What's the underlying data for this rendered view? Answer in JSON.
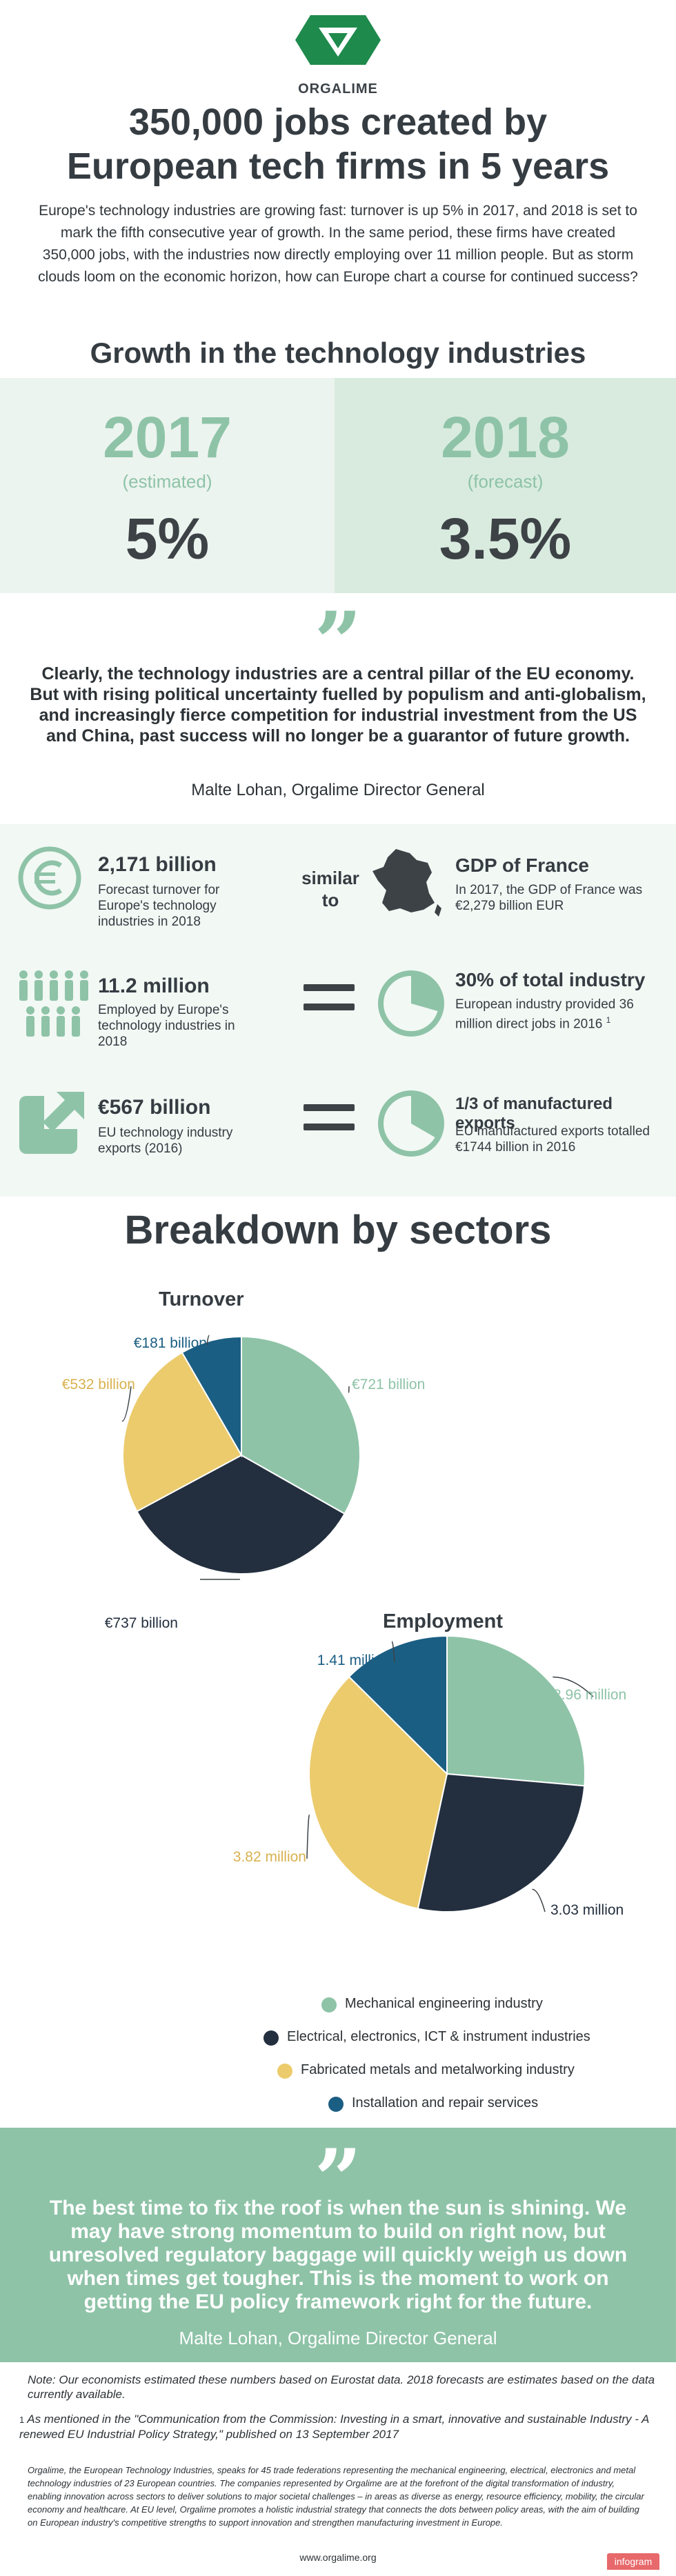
{
  "header": {
    "logo_text": "ORGALIME",
    "title": "350,000 jobs created by European tech firms in 5 years",
    "title_line1": "350,000 jobs created by",
    "title_line2": "European tech firms in 5 years",
    "intro": "Europe's technology industries are growing fast: turnover is up 5% in 2017, and 2018 is set to mark the fifth consecutive year of growth. In the same period, these firms have created 350,000 jobs, with the industries now directly employing over 11 million people. But as storm clouds loom on the economic horizon, how can Europe chart a course for continued success?"
  },
  "growth": {
    "heading": "Growth in the technology industries",
    "items": [
      {
        "year": "2017",
        "note": "(estimated)",
        "value": "5%"
      },
      {
        "year": "2018",
        "note": "(forecast)",
        "value": "3.5%"
      }
    ]
  },
  "quote1": {
    "mark": "”",
    "text": "Clearly, the technology industries are a central pillar of the EU economy. But with rising political uncertainty fuelled by populism and anti-globalism, and increasingly fierce competition for industrial investment from the US and China, past success will no longer be a guarantor of future growth.",
    "author": "Malte Lohan, Orgalime Director General"
  },
  "stats": {
    "rows": [
      {
        "icon": "euro-icon",
        "title": "2,171 billion",
        "desc": "Forecast turnover for Europe's technology industries in 2018",
        "connector": "similar to",
        "right_icon": "france-map-icon",
        "right_title": "GDP of France",
        "right_desc": "In 2017, the GDP of France was €2,279 billion EUR"
      },
      {
        "icon": "people-icon",
        "title": "11.2 million",
        "desc": "Employed by Europe's technology industries in 2018",
        "connector": "=",
        "right_icon": "pie-segment-icon",
        "right_title": "30% of total industry",
        "right_desc": "European industry provided 36 million direct jobs in 2016",
        "right_footnote": "1"
      },
      {
        "icon": "export-arrow-icon",
        "title": "€567 billion",
        "desc": "EU technology industry exports (2016)",
        "connector": "=",
        "right_icon": "pie-segment-icon",
        "right_title": "1/3 of manufactured exports",
        "right_desc": "EU manufactured exports totalled €1744 billion in 2016"
      }
    ]
  },
  "breakdown": {
    "heading": "Breakdown by sectors"
  },
  "colors": {
    "green": "#8ec3a7",
    "navy": "#232f3e",
    "yellow": "#eccb6c",
    "blue": "#1b5e83",
    "dark_text": "#353c42"
  },
  "chart_data": [
    {
      "type": "pie",
      "title": "Turnover",
      "categories": [
        "Mechanical engineering industry",
        "Electrical, electronics, ICT & instrument industries",
        "Fabricated metals and metalworking industry",
        "Installation and repair services"
      ],
      "values": [
        721,
        737,
        532,
        181
      ],
      "labels": [
        "€721 billion",
        "€737 billion",
        "€532 billion",
        "€181 billion"
      ]
    },
    {
      "type": "pie",
      "title": "Employment",
      "categories": [
        "Mechanical engineering industry",
        "Electrical, electronics, ICT & instrument industries",
        "Fabricated metals and metalworking industry",
        "Installation and repair services"
      ],
      "values": [
        2.96,
        3.03,
        3.82,
        1.41
      ],
      "labels": [
        "2.96 million",
        "3.03 million",
        "3.82 million",
        "1.41 million"
      ]
    }
  ],
  "legend": [
    {
      "label": "Mechanical engineering industry",
      "color": "#8ec3a7"
    },
    {
      "label": "Electrical, electronics, ICT & instrument industries",
      "color": "#232f3e"
    },
    {
      "label": "Fabricated metals and metalworking industry",
      "color": "#eccb6c"
    },
    {
      "label": "Installation and repair services",
      "color": "#1b5e83"
    }
  ],
  "quote2": {
    "mark": "”",
    "text": "The best time to fix the roof is when the sun is shining. We may have strong momentum to build on right now, but unresolved regulatory baggage will quickly weigh us down when times get tougher. This is the moment to work on getting the EU policy framework right for the future.",
    "author": "Malte Lohan, Orgalime Director General"
  },
  "footnotes": {
    "note": "Note: Our economists estimated these numbers based on Eurostat data. 2018 forecasts are estimates based on the data currently available.",
    "ref_num": "1",
    "ref_text": "As mentioned in the \"Communication from the Commission: Investing in a smart, innovative and sustainable Industry - A renewed EU Industrial Policy Strategy,\" published on 13 September 2017",
    "about": "Orgalime, the European Technology Industries, speaks for 45 trade federations representing the mechanical engineering, electrical, electronics and metal technology industries of 23 European countries. The companies represented by Orgalime are at the forefront of the digital transformation of industry, enabling innovation across sectors to deliver solutions to major societal challenges – in areas as diverse as energy, resource efficiency, mobility, the circular economy and healthcare. At EU level, Orgalime promotes a holistic industrial strategy that connects the dots between policy areas, with the aim of building on European industry's competitive strengths to support innovation and strengthen manufacturing investment in Europe.",
    "url": "www.orgalime.org",
    "badge": "infogram"
  }
}
